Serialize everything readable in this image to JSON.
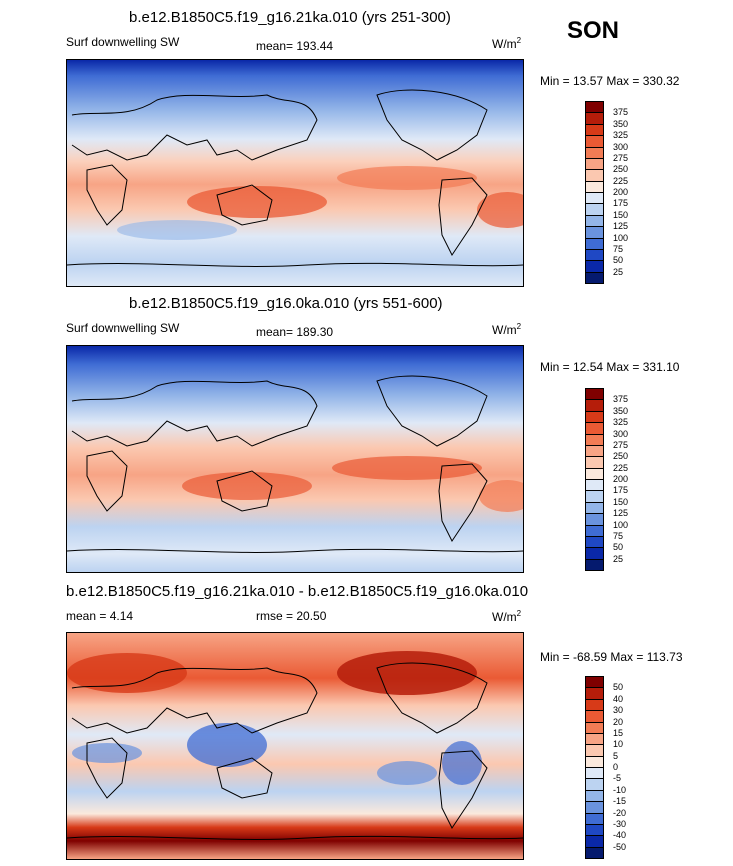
{
  "season": "SON",
  "unit_main": "W/m",
  "unit_sup": "2",
  "chart_data": [
    {
      "type": "heatmap",
      "title": "b.e12.B1850C5.f19_g16.21ka.010 (yrs 251-300)",
      "field_label": "Surf downwelling SW",
      "mean_text": "mean= 193.44",
      "minmax_text": "Min =  13.57 Max = 330.32",
      "mean": 193.44,
      "min": 13.57,
      "max": 330.32,
      "colorbar": {
        "levels": [
          "375",
          "350",
          "325",
          "300",
          "275",
          "250",
          "225",
          "200",
          "175",
          "150",
          "125",
          "100",
          "75",
          "50",
          "25"
        ],
        "colors": [
          "#7f0000",
          "#b51d0a",
          "#d73a18",
          "#ea5a34",
          "#f27c55",
          "#f7a485",
          "#fbc8b0",
          "#fbe9dd",
          "#dfe9f7",
          "#bcd3f1",
          "#93b5e8",
          "#6a93de",
          "#3f6cd4",
          "#1f48c4",
          "#0a28a8",
          "#051a6e"
        ]
      }
    },
    {
      "type": "heatmap",
      "title": "b.e12.B1850C5.f19_g16.0ka.010 (yrs 551-600)",
      "field_label": "Surf downwelling SW",
      "mean_text": "mean= 189.30",
      "minmax_text": "Min =  12.54 Max = 331.10",
      "mean": 189.3,
      "min": 12.54,
      "max": 331.1,
      "colorbar": {
        "levels": [
          "375",
          "350",
          "325",
          "300",
          "275",
          "250",
          "225",
          "200",
          "175",
          "150",
          "125",
          "100",
          "75",
          "50",
          "25"
        ],
        "colors": [
          "#7f0000",
          "#b51d0a",
          "#d73a18",
          "#ea5a34",
          "#f27c55",
          "#f7a485",
          "#fbc8b0",
          "#fbe9dd",
          "#dfe9f7",
          "#bcd3f1",
          "#93b5e8",
          "#6a93de",
          "#3f6cd4",
          "#1f48c4",
          "#0a28a8",
          "#051a6e"
        ]
      }
    },
    {
      "type": "heatmap",
      "title": "b.e12.B1850C5.f19_g16.21ka.010 - b.e12.B1850C5.f19_g16.0ka.010",
      "mean_text": "mean =   4.14",
      "rmse_text": "rmse =  20.50",
      "minmax_text": "Min = -68.59 Max = 113.73",
      "mean": 4.14,
      "rmse": 20.5,
      "min": -68.59,
      "max": 113.73,
      "colorbar": {
        "levels": [
          "50",
          "40",
          "30",
          "20",
          "15",
          "10",
          "5",
          "0",
          "-5",
          "-10",
          "-15",
          "-20",
          "-30",
          "-40",
          "-50"
        ],
        "colors": [
          "#7f0000",
          "#b51d0a",
          "#d73a18",
          "#ea5a34",
          "#f27c55",
          "#f7a485",
          "#fbc8b0",
          "#fbe9dd",
          "#dfe9f7",
          "#bcd3f1",
          "#93b5e8",
          "#6a93de",
          "#3f6cd4",
          "#1f48c4",
          "#0a28a8",
          "#051a6e"
        ]
      }
    }
  ]
}
